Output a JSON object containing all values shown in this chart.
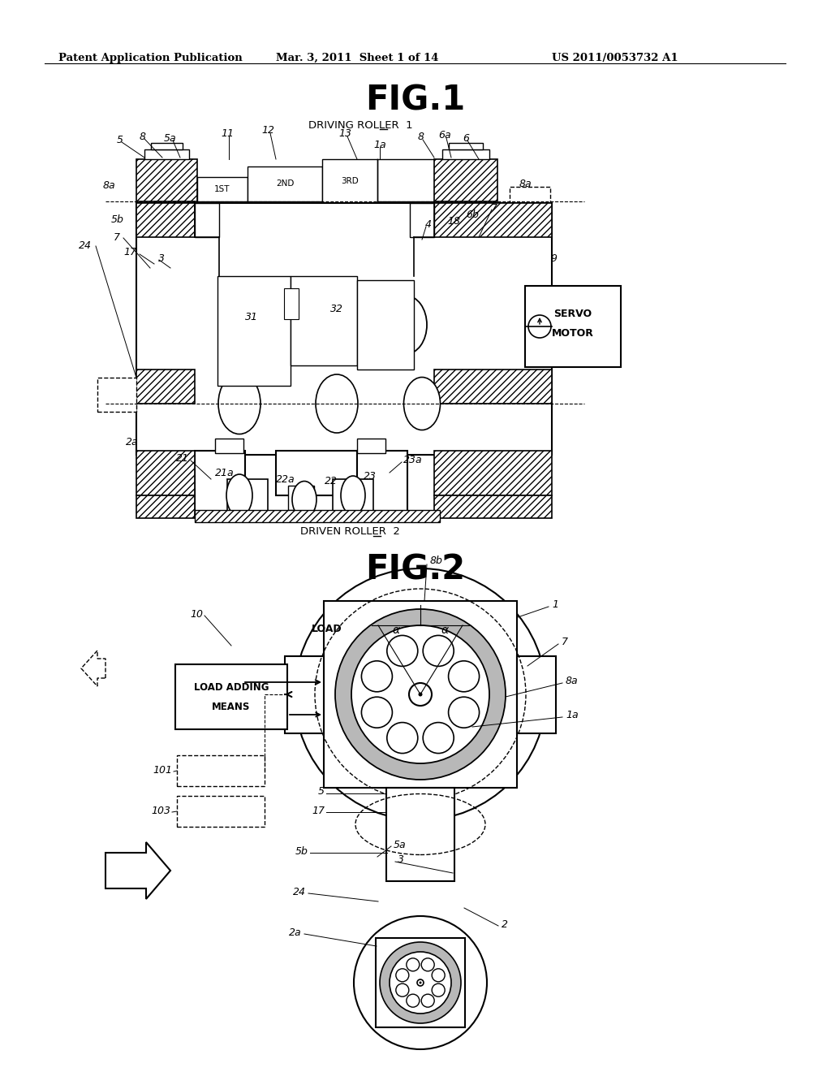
{
  "bg_color": "#ffffff",
  "header_left": "Patent Application Publication",
  "header_mid": "Mar. 3, 2011  Sheet 1 of 14",
  "header_right": "US 2011/0053732 A1",
  "fig1_title": "FIG.1",
  "fig1_subtitle": "DRIVING ROLLER  1",
  "fig1_bottom_label": "DRIVEN ROLLER  2",
  "fig2_title": "FIG.2"
}
